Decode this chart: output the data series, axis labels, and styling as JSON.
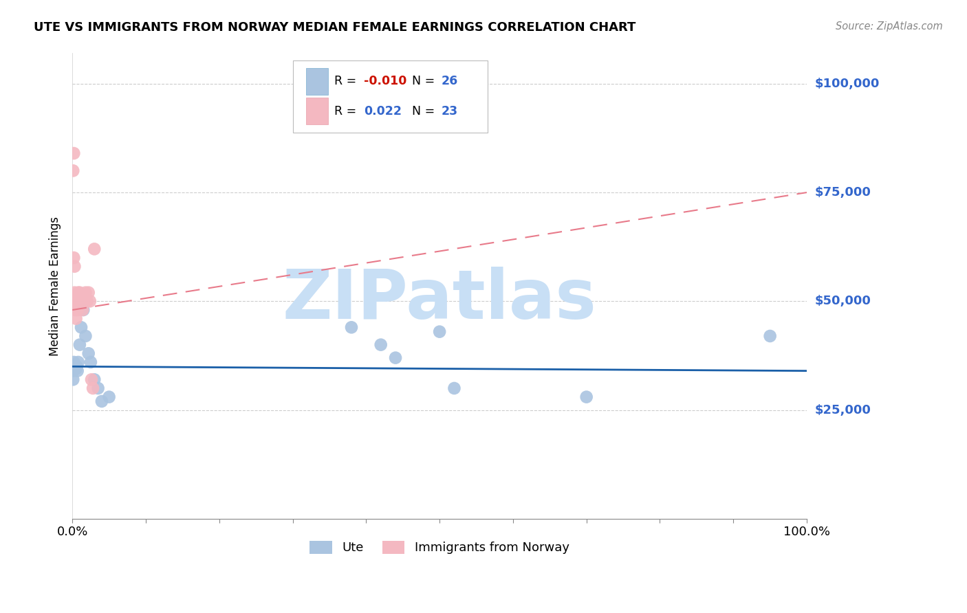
{
  "title": "UTE VS IMMIGRANTS FROM NORWAY MEDIAN FEMALE EARNINGS CORRELATION CHART",
  "source": "Source: ZipAtlas.com",
  "ylabel": "Median Female Earnings",
  "ytick_labels": [
    "$25,000",
    "$50,000",
    "$75,000",
    "$100,000"
  ],
  "ytick_values": [
    25000,
    50000,
    75000,
    100000
  ],
  "xlim": [
    0,
    1
  ],
  "ylim": [
    0,
    107000
  ],
  "legend1_label": "Ute",
  "legend2_label": "Immigrants from Norway",
  "R1": -0.01,
  "N1": 26,
  "R2": 0.022,
  "N2": 23,
  "color_ute": "#aac4e0",
  "color_norway": "#f4b8c1",
  "color_ute_line": "#1a5fa8",
  "color_norway_line": "#e87a8a",
  "color_ytick": "#3366cc",
  "watermark_color": "#c8dff5",
  "ute_line_y0": 35000,
  "ute_line_y1": 34000,
  "norway_line_y0": 48000,
  "norway_line_y1": 75000,
  "ute_x": [
    0.001,
    0.002,
    0.003,
    0.004,
    0.005,
    0.006,
    0.007,
    0.008,
    0.01,
    0.012,
    0.015,
    0.018,
    0.022,
    0.025,
    0.03,
    0.035,
    0.04,
    0.05,
    0.38,
    0.42,
    0.44,
    0.5,
    0.52,
    0.7,
    0.95,
    0.001
  ],
  "ute_y": [
    34000,
    36000,
    35000,
    35000,
    34500,
    35000,
    34000,
    36000,
    40000,
    44000,
    48000,
    42000,
    38000,
    36000,
    32000,
    30000,
    27000,
    28000,
    44000,
    40000,
    37000,
    43000,
    30000,
    28000,
    42000,
    32000
  ],
  "norway_x": [
    0.001,
    0.002,
    0.003,
    0.003,
    0.004,
    0.005,
    0.006,
    0.007,
    0.008,
    0.009,
    0.01,
    0.012,
    0.014,
    0.016,
    0.018,
    0.02,
    0.022,
    0.024,
    0.026,
    0.028,
    0.03,
    0.003,
    0.002
  ],
  "norway_y": [
    80000,
    84000,
    52000,
    50000,
    48000,
    46000,
    50000,
    48000,
    52000,
    50000,
    52000,
    50000,
    48000,
    50000,
    52000,
    50000,
    52000,
    50000,
    32000,
    30000,
    62000,
    58000,
    60000
  ],
  "background_color": "#ffffff"
}
